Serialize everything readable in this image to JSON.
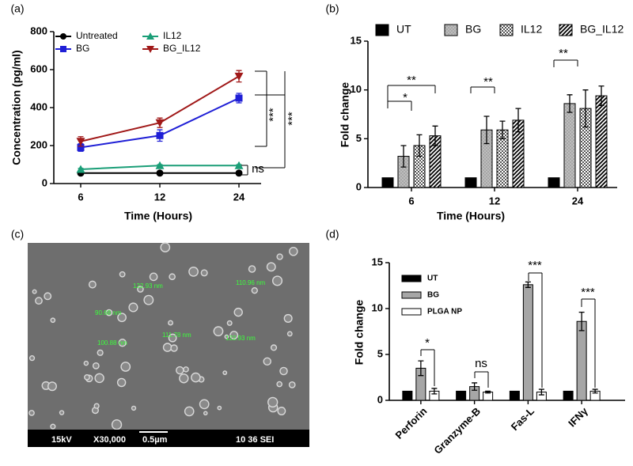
{
  "chart_data": [
    {
      "type": "line",
      "panel": "(a)",
      "xlabel": "Time (Hours)",
      "ylabel": "Concentration (pg/ml)",
      "categories": [
        "6",
        "12",
        "24"
      ],
      "ylim": [
        0,
        800
      ],
      "yticks": [
        0,
        200,
        400,
        600,
        800
      ],
      "series": [
        {
          "name": "Untreated",
          "color": "#000000",
          "marker": "circle",
          "values": [
            55,
            55,
            55
          ],
          "errors": [
            5,
            5,
            5
          ]
        },
        {
          "name": "BG",
          "color": "#1f1fd6",
          "marker": "square",
          "values": [
            190,
            253,
            450
          ],
          "errors": [
            20,
            30,
            25
          ]
        },
        {
          "name": "IL12",
          "color": "#1a9e77",
          "marker": "triangle",
          "values": [
            75,
            95,
            95
          ],
          "errors": [
            5,
            5,
            5
          ]
        },
        {
          "name": "BG_IL12",
          "color": "#a01818",
          "marker": "triangle-down",
          "values": [
            222,
            320,
            565
          ],
          "errors": [
            25,
            25,
            30
          ]
        }
      ],
      "annotations": [
        "ns",
        "***",
        "***"
      ]
    },
    {
      "type": "bar",
      "panel": "(b)",
      "xlabel": "Time (Hours)",
      "ylabel": "Fold change",
      "categories": [
        "6",
        "12",
        "24"
      ],
      "ylim": [
        0,
        15
      ],
      "yticks": [
        0,
        5,
        10,
        15
      ],
      "series": [
        {
          "name": "UT",
          "color": "#000000",
          "pattern": "solid",
          "values": [
            1,
            1,
            1
          ],
          "errors": [
            0,
            0,
            0
          ]
        },
        {
          "name": "BG",
          "color": "#8c8c8c",
          "pattern": "dots",
          "values": [
            3.2,
            5.9,
            8.6
          ],
          "errors": [
            1.1,
            1.4,
            0.9
          ]
        },
        {
          "name": "IL12",
          "color": "#555555",
          "pattern": "checks",
          "values": [
            4.3,
            5.9,
            8.1
          ],
          "errors": [
            1.1,
            0.9,
            1.9
          ]
        },
        {
          "name": "BG_IL12",
          "color": "#000000",
          "pattern": "stripes",
          "values": [
            5.3,
            6.9,
            9.4
          ],
          "errors": [
            1.0,
            1.2,
            1.0
          ]
        }
      ],
      "annotations": [
        "*",
        "**",
        "**",
        "**"
      ]
    },
    {
      "type": "bar",
      "panel": "(d)",
      "ylabel": "Fold change",
      "categories": [
        "Perforin",
        "Granzyme-B",
        "Fas-L",
        "IFNγ"
      ],
      "ylim": [
        0,
        15
      ],
      "yticks": [
        0,
        5,
        10,
        15
      ],
      "series": [
        {
          "name": "UT",
          "color": "#000000",
          "pattern": "solid",
          "values": [
            1,
            1,
            1,
            1
          ],
          "errors": [
            0,
            0,
            0,
            0
          ]
        },
        {
          "name": "BG",
          "color": "#a6a6a6",
          "pattern": "solid",
          "values": [
            3.5,
            1.5,
            12.6,
            8.6
          ],
          "errors": [
            0.8,
            0.4,
            0.3,
            1.0
          ]
        },
        {
          "name": "PLGA NP",
          "color": "#ffffff",
          "pattern": "solid",
          "values": [
            1.0,
            0.9,
            0.9,
            1.0
          ],
          "errors": [
            0.3,
            0.1,
            0.3,
            0.2
          ]
        }
      ],
      "annotations": [
        "*",
        "ns",
        "***",
        "***"
      ]
    }
  ],
  "micrograph": {
    "panel": "(c)",
    "labels": [
      "122.93 nm",
      "110.96 nm",
      "90.68 nm",
      "111.78 nm",
      "122.93 nm",
      "100.88 nm"
    ],
    "footer": [
      "15kV",
      "X30,000",
      "0.5µm",
      "10 36 SEI"
    ]
  }
}
